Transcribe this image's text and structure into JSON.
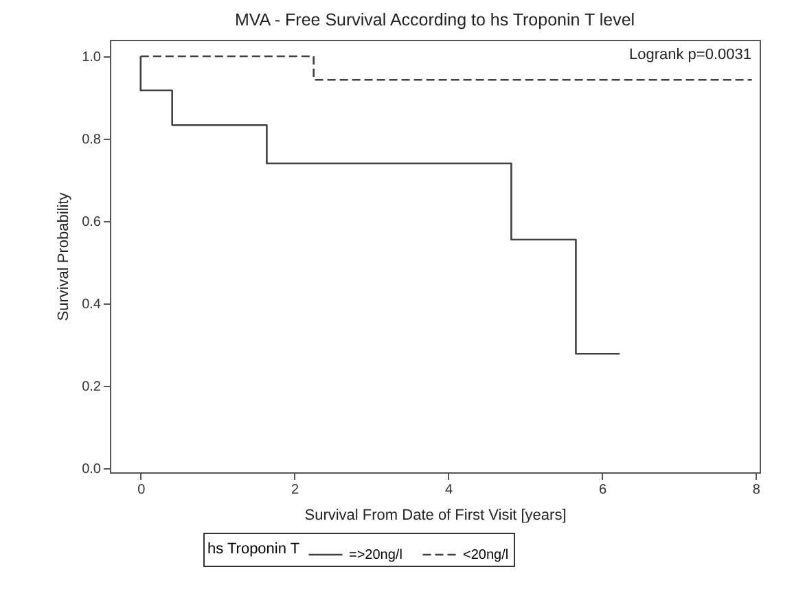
{
  "chart_data": {
    "type": "step",
    "title": "MVA - Free Survival According to hs Troponin T level",
    "xlabel": "Survival From Date of First Visit [years]",
    "ylabel": "Survival Probability",
    "legend_title": "hs Troponin T",
    "legend": "bottom",
    "grid": false,
    "annotations": [
      "Logrank p=0.0031"
    ],
    "xlim": [
      -0.4,
      8.05
    ],
    "xticks": [
      0,
      2,
      4,
      6,
      8
    ],
    "ylim": [
      -0.01,
      1.04
    ],
    "yticks": [
      {
        "value": 0,
        "label": "0.0"
      },
      {
        "value": 0.2,
        "label": "0.2"
      },
      {
        "value": 0.4,
        "label": "0.4"
      },
      {
        "value": 0.6,
        "label": "0.6"
      },
      {
        "value": 0.8,
        "label": "0.8"
      },
      {
        "value": 1,
        "label": "1.0"
      }
    ],
    "series": [
      {
        "name": "=>20ng/l",
        "color": "#404040",
        "line_style": "solid",
        "x": [
          0,
          0,
          0.41,
          1.64,
          4.82,
          5.66,
          6.23
        ],
        "values": [
          1.0,
          0.917,
          0.833,
          0.74,
          0.555,
          0.278,
          0.278
        ]
      },
      {
        "name": "<20ng/l",
        "color": "#404040",
        "line_style": "dashed",
        "x": [
          0,
          2.25,
          7.95
        ],
        "values": [
          1.0,
          0.943,
          0.943
        ]
      }
    ]
  }
}
